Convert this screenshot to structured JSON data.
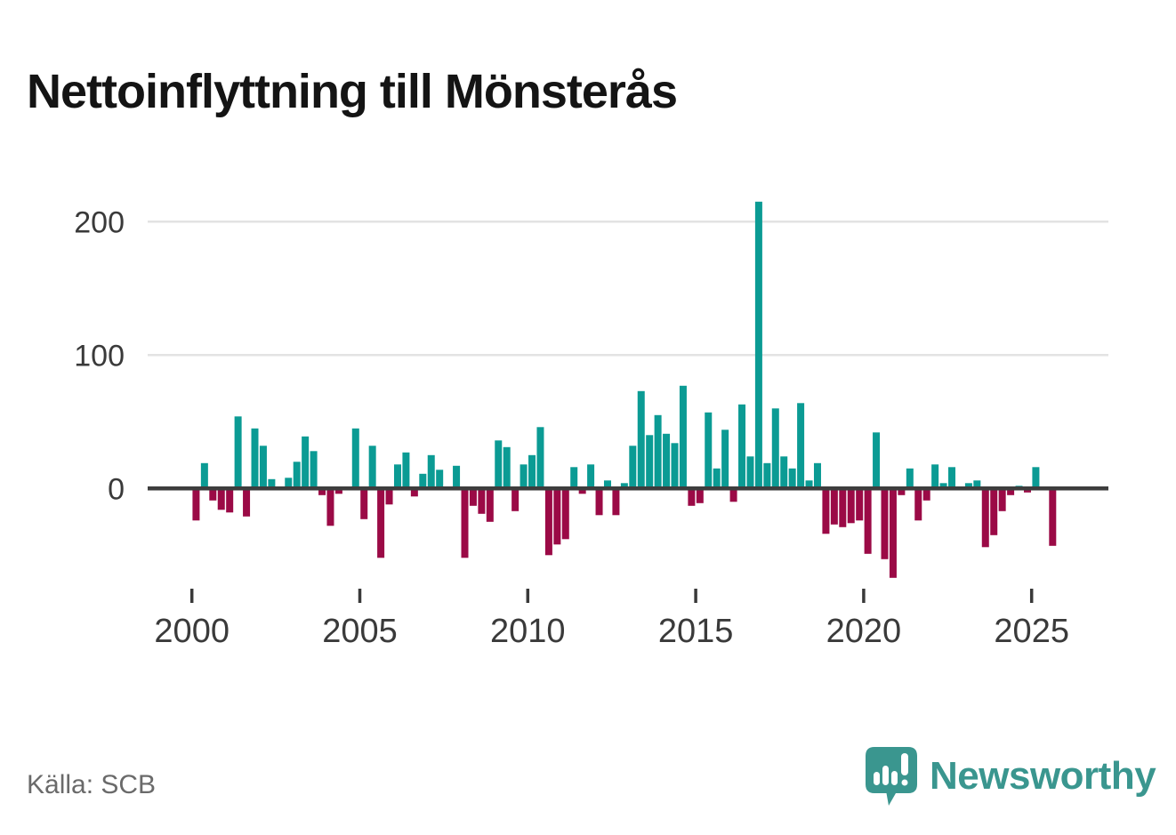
{
  "title": "Nettoinflyttning till Mönsterås",
  "source": "Källa: SCB",
  "branding": {
    "logo_text": "Newsworthy",
    "logo_icon": "newsworthy-speech-bubble-chart-icon",
    "logo_color": "#3a968f"
  },
  "colors": {
    "positive_bar": "#0b9b94",
    "negative_bar": "#9b0a46",
    "zero_line": "#3d3d3d",
    "gridline": "#e3e3e3",
    "axis_text": "#3a3a3a",
    "tick_mark": "#3a3a3a",
    "title_text": "#141414",
    "source_text": "#6a6a6a",
    "background": "#ffffff"
  },
  "chart_data": {
    "type": "bar",
    "title": "Nettoinflyttning till Mönsterås",
    "xlabel": "",
    "ylabel": "",
    "x_unit": "quarter",
    "grid": "horizontal",
    "legend": "none",
    "y_ticks": [
      0,
      100,
      200
    ],
    "x_tick_years": [
      2000,
      2005,
      2010,
      2015,
      2020,
      2025
    ],
    "ylim": [
      -75,
      220
    ],
    "categories": [
      "2000Q1",
      "2000Q2",
      "2000Q3",
      "2000Q4",
      "2001Q1",
      "2001Q2",
      "2001Q3",
      "2001Q4",
      "2002Q1",
      "2002Q2",
      "2002Q3",
      "2002Q4",
      "2003Q1",
      "2003Q2",
      "2003Q3",
      "2003Q4",
      "2004Q1",
      "2004Q2",
      "2004Q3",
      "2004Q4",
      "2005Q1",
      "2005Q2",
      "2005Q3",
      "2005Q4",
      "2006Q1",
      "2006Q2",
      "2006Q3",
      "2006Q4",
      "2007Q1",
      "2007Q2",
      "2007Q3",
      "2007Q4",
      "2008Q1",
      "2008Q2",
      "2008Q3",
      "2008Q4",
      "2009Q1",
      "2009Q2",
      "2009Q3",
      "2009Q4",
      "2010Q1",
      "2010Q2",
      "2010Q3",
      "2010Q4",
      "2011Q1",
      "2011Q2",
      "2011Q3",
      "2011Q4",
      "2012Q1",
      "2012Q2",
      "2012Q3",
      "2012Q4",
      "2013Q1",
      "2013Q2",
      "2013Q3",
      "2013Q4",
      "2014Q1",
      "2014Q2",
      "2014Q3",
      "2014Q4",
      "2015Q1",
      "2015Q2",
      "2015Q3",
      "2015Q4",
      "2016Q1",
      "2016Q2",
      "2016Q3",
      "2016Q4",
      "2017Q1",
      "2017Q2",
      "2017Q3",
      "2017Q4",
      "2018Q1",
      "2018Q2",
      "2018Q3",
      "2018Q4",
      "2019Q1",
      "2019Q2",
      "2019Q3",
      "2019Q4",
      "2020Q1",
      "2020Q2",
      "2020Q3",
      "2020Q4",
      "2021Q1",
      "2021Q2",
      "2021Q3",
      "2021Q4",
      "2022Q1",
      "2022Q2",
      "2022Q3",
      "2022Q4",
      "2023Q1",
      "2023Q2",
      "2023Q3",
      "2023Q4",
      "2024Q1",
      "2024Q2",
      "2024Q3",
      "2024Q4",
      "2025Q1",
      "2025Q2",
      "2025Q3"
    ],
    "values": [
      -24,
      19,
      -9,
      -16,
      -18,
      54,
      -21,
      45,
      32,
      7,
      0,
      8,
      20,
      39,
      28,
      -5,
      -28,
      -4,
      0,
      45,
      -23,
      32,
      -52,
      -12,
      18,
      27,
      -6,
      11,
      25,
      14,
      0,
      17,
      -52,
      -13,
      -19,
      -25,
      36,
      31,
      -17,
      18,
      25,
      46,
      -50,
      -42,
      -38,
      16,
      -4,
      18,
      -20,
      6,
      -20,
      4,
      32,
      73,
      40,
      55,
      41,
      34,
      77,
      -13,
      -11,
      57,
      15,
      44,
      -10,
      63,
      24,
      215,
      19,
      60,
      24,
      15,
      64,
      6,
      19,
      -34,
      -27,
      -29,
      -26,
      -24,
      -49,
      42,
      -53,
      -67,
      -5,
      15,
      -24,
      -9,
      18,
      4,
      16,
      0,
      4,
      6,
      -44,
      -35,
      -17,
      -5,
      2,
      -3,
      16,
      0,
      -43
    ]
  }
}
